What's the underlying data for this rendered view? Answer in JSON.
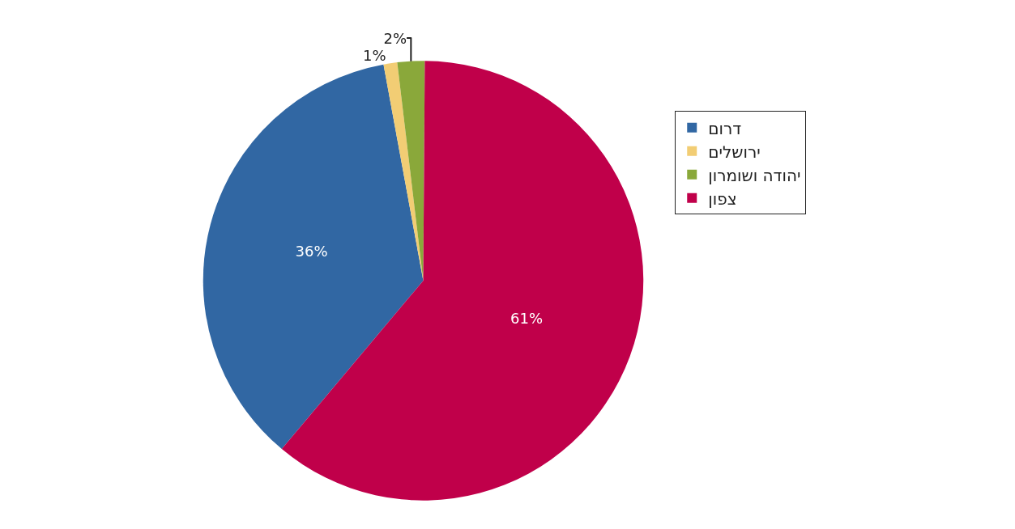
{
  "chart_data": {
    "type": "pie",
    "categories": [
      "דרום",
      "ירושלים",
      "יהודה ושומרון",
      "צפון"
    ],
    "values": [
      36,
      1,
      2,
      61
    ],
    "colors": [
      "#3167a3",
      "#f2cd74",
      "#8aa83a",
      "#c0004a"
    ],
    "value_labels": [
      "36%",
      "1%",
      "2%",
      "61%"
    ],
    "legend": "right"
  }
}
